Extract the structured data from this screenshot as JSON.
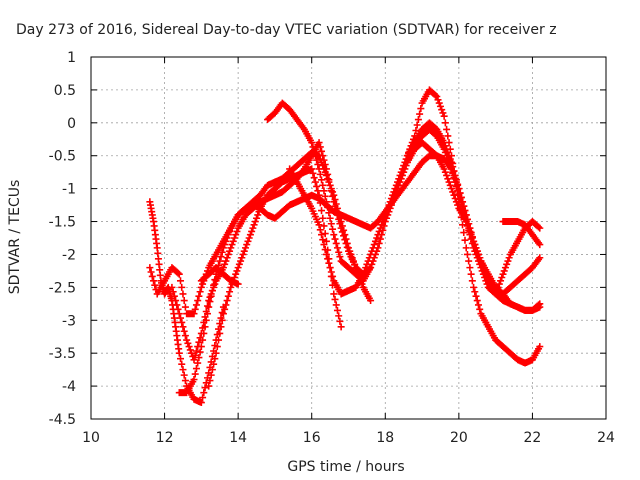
{
  "chart_data": {
    "type": "scatter",
    "title": "Day 273 of 2016, Sidereal Day-to-day VTEC variation (SDTVAR) for receiver z",
    "xlabel": "GPS time / hours",
    "ylabel": "SDTVAR / TECUs",
    "xlim": [
      10,
      24
    ],
    "ylim": [
      -4.5,
      1
    ],
    "x_ticks": [
      10,
      12,
      14,
      16,
      18,
      20,
      22,
      24
    ],
    "y_ticks": [
      1,
      0.5,
      0,
      -0.5,
      -1,
      -1.5,
      -2,
      -2.5,
      -3,
      -3.5,
      -4,
      -4.5
    ],
    "grid": true,
    "marker": "plus",
    "color": "#ff0000",
    "series": [
      {
        "x": [
          11.6,
          11.8,
          12.0,
          12.2,
          12.4,
          12.6,
          12.8,
          13.0,
          13.2,
          13.4,
          13.6,
          13.8,
          14.0,
          14.2,
          14.4,
          14.6,
          14.8,
          15.0,
          15.2,
          15.4,
          15.6,
          15.8,
          16.0,
          16.2,
          16.4,
          16.6,
          16.8,
          17.0,
          17.2,
          17.4,
          17.6
        ],
        "y": [
          -2.2,
          -2.6,
          -2.4,
          -2.2,
          -2.3,
          -2.9,
          -2.9,
          -2.5,
          -2.2,
          -2.0,
          -1.8,
          -1.6,
          -1.4,
          -1.3,
          -1.2,
          -1.1,
          -0.95,
          -0.9,
          -0.85,
          -0.75,
          -0.65,
          -0.55,
          -0.45,
          -0.5,
          -0.8,
          -1.1,
          -1.5,
          -1.9,
          -2.2,
          -2.5,
          -2.7
        ]
      },
      {
        "x": [
          12.2,
          12.4,
          12.6,
          12.8,
          13.0,
          13.2,
          13.4,
          13.6,
          13.8,
          14.0,
          14.2,
          14.4,
          14.6,
          14.8,
          15.0,
          15.2,
          15.4,
          15.6,
          15.8,
          16.0,
          16.2,
          16.4,
          16.6,
          16.8,
          17.0,
          17.2,
          17.4,
          17.6
        ],
        "y": [
          -2.5,
          -2.9,
          -3.3,
          -3.6,
          -3.2,
          -2.7,
          -2.4,
          -2.2,
          -1.9,
          -1.6,
          -1.4,
          -1.3,
          -1.2,
          -1.15,
          -1.1,
          -1.05,
          -0.95,
          -0.85,
          -0.7,
          -0.5,
          -0.3,
          -0.7,
          -1.2,
          -1.6,
          -1.95,
          -2.2,
          -2.3,
          -2.2
        ]
      },
      {
        "x": [
          12.4,
          12.6,
          12.8,
          13.0,
          13.2,
          13.4,
          13.6,
          13.8,
          14.0,
          14.2,
          14.4,
          14.6,
          14.8,
          15.0,
          15.2,
          15.4,
          15.6,
          15.8,
          16.0,
          16.2,
          16.4,
          16.6,
          16.8,
          17.0,
          17.2,
          17.4,
          17.6,
          17.8,
          18.0,
          18.2,
          18.4,
          18.6,
          18.8,
          19.0,
          19.2,
          19.4,
          19.6,
          19.8,
          20.0,
          20.2,
          20.4,
          20.6,
          20.8,
          21.0,
          21.2,
          21.4,
          21.6,
          21.8,
          22.0,
          22.2
        ],
        "y": [
          -4.1,
          -4.1,
          -3.9,
          -3.4,
          -2.8,
          -2.3,
          -1.9,
          -1.6,
          -1.4,
          -1.3,
          -1.25,
          -1.3,
          -1.4,
          -1.45,
          -1.35,
          -1.25,
          -1.2,
          -1.15,
          -1.1,
          -1.15,
          -1.25,
          -1.35,
          -1.4,
          -1.45,
          -1.5,
          -1.55,
          -1.6,
          -1.5,
          -1.35,
          -1.2,
          -1.05,
          -0.9,
          -0.75,
          -0.6,
          -0.5,
          -0.5,
          -0.55,
          -0.7,
          -1.0,
          -1.4,
          -1.8,
          -2.1,
          -2.3,
          -2.5,
          -2.6,
          -2.75,
          -2.8,
          -2.85,
          -2.85,
          -2.75
        ]
      },
      {
        "x": [
          14.8,
          15.0,
          15.2,
          15.4,
          15.6,
          15.8,
          16.0,
          16.2,
          16.4,
          16.6,
          16.8,
          17.0,
          17.2,
          17.4,
          17.6,
          17.8,
          18.0,
          18.2,
          18.4,
          18.6,
          18.8,
          19.0,
          19.2,
          19.4,
          19.6,
          19.8,
          20.0,
          20.2,
          20.4,
          20.6,
          20.8,
          21.0,
          21.2,
          21.4,
          21.6,
          21.8,
          22.0,
          22.2
        ],
        "y": [
          0.05,
          0.15,
          0.3,
          0.2,
          0.05,
          -0.1,
          -0.3,
          -0.7,
          -1.2,
          -1.7,
          -2.1,
          -2.2,
          -2.3,
          -2.4,
          -2.2,
          -1.9,
          -1.5,
          -1.2,
          -0.9,
          -0.6,
          -0.3,
          -0.1,
          0.0,
          -0.1,
          -0.3,
          -0.6,
          -1.0,
          -1.4,
          -1.8,
          -2.1,
          -2.4,
          -2.55,
          -2.6,
          -2.5,
          -2.4,
          -2.3,
          -2.2,
          -2.05
        ]
      },
      {
        "x": [
          15.4,
          15.6,
          15.8,
          16.0,
          16.2,
          16.4,
          16.6,
          16.8,
          17.0,
          17.2,
          17.4,
          17.6,
          17.8,
          18.0,
          18.2,
          18.4,
          18.6,
          18.8,
          19.0,
          19.2,
          19.4,
          19.6,
          19.8,
          20.0,
          20.2,
          20.4,
          20.6,
          20.8,
          21.0,
          21.2,
          21.4,
          21.6,
          21.8,
          22.0,
          22.2
        ],
        "y": [
          -0.7,
          -0.9,
          -1.1,
          -1.3,
          -1.55,
          -2.0,
          -2.4,
          -2.6,
          -2.55,
          -2.5,
          -2.3,
          -2.0,
          -1.7,
          -1.4,
          -1.1,
          -0.8,
          -0.5,
          -0.3,
          -0.2,
          -0.1,
          -0.2,
          -0.4,
          -0.7,
          -1.1,
          -1.5,
          -1.9,
          -2.2,
          -2.5,
          -2.6,
          -2.7,
          -2.75,
          -2.8,
          -2.85,
          -2.85,
          -2.8
        ]
      },
      {
        "x": [
          18.6,
          18.8,
          19.0,
          19.2,
          19.4,
          19.6,
          19.8,
          20.0,
          20.2,
          20.4,
          20.6,
          20.8,
          21.0,
          21.2,
          21.4,
          21.6,
          21.8,
          22.0,
          22.2
        ],
        "y": [
          -0.6,
          -0.4,
          -0.3,
          -0.4,
          -0.5,
          -0.7,
          -1.0,
          -1.3,
          -1.5,
          -1.8,
          -2.1,
          -2.4,
          -2.6,
          -2.3,
          -2.0,
          -1.8,
          -1.6,
          -1.5,
          -1.6
        ]
      },
      {
        "x": [
          18.6,
          18.8,
          19.0,
          19.2,
          19.4,
          19.6,
          19.8,
          20.0,
          20.2,
          20.4,
          20.6,
          20.8,
          21.0,
          21.2,
          21.4,
          21.6,
          21.8,
          22.0,
          22.2
        ],
        "y": [
          -0.5,
          -0.2,
          0.3,
          0.5,
          0.4,
          0.1,
          -0.5,
          -1.2,
          -1.9,
          -2.5,
          -2.9,
          -3.1,
          -3.3,
          -3.4,
          -3.5,
          -3.6,
          -3.65,
          -3.6,
          -3.4
        ]
      },
      {
        "x": [
          21.2,
          21.4,
          21.6,
          21.8,
          22.0,
          22.2
        ],
        "y": [
          -1.5,
          -1.5,
          -1.5,
          -1.55,
          -1.7,
          -1.85
        ]
      },
      {
        "x": [
          11.6,
          11.7,
          11.8,
          11.9,
          12.0,
          12.1,
          12.2,
          12.3,
          12.4,
          12.6,
          12.8,
          13.0,
          13.2,
          13.4,
          13.6
        ],
        "y": [
          -1.2,
          -1.5,
          -1.9,
          -2.4,
          -2.6,
          -2.5,
          -2.7,
          -3.1,
          -3.5,
          -4.0,
          -4.2,
          -4.25,
          -3.8,
          -3.3,
          -2.8
        ]
      },
      {
        "x": [
          13.2,
          13.4,
          13.6,
          13.8,
          14.0,
          14.2,
          14.4,
          14.6,
          14.8,
          15.0,
          15.2,
          15.4,
          15.6,
          15.8,
          16.0,
          16.2,
          16.4,
          16.6,
          16.8
        ],
        "y": [
          -4.0,
          -3.5,
          -2.9,
          -2.5,
          -2.2,
          -1.9,
          -1.6,
          -1.3,
          -1.1,
          -1.0,
          -0.9,
          -0.85,
          -0.8,
          -0.75,
          -0.7,
          -1.1,
          -1.8,
          -2.6,
          -3.1
        ]
      },
      {
        "x": [
          13.0,
          13.2,
          13.4,
          13.6,
          13.8,
          14.0
        ],
        "y": [
          -2.4,
          -2.3,
          -2.2,
          -2.3,
          -2.4,
          -2.45
        ]
      }
    ]
  }
}
